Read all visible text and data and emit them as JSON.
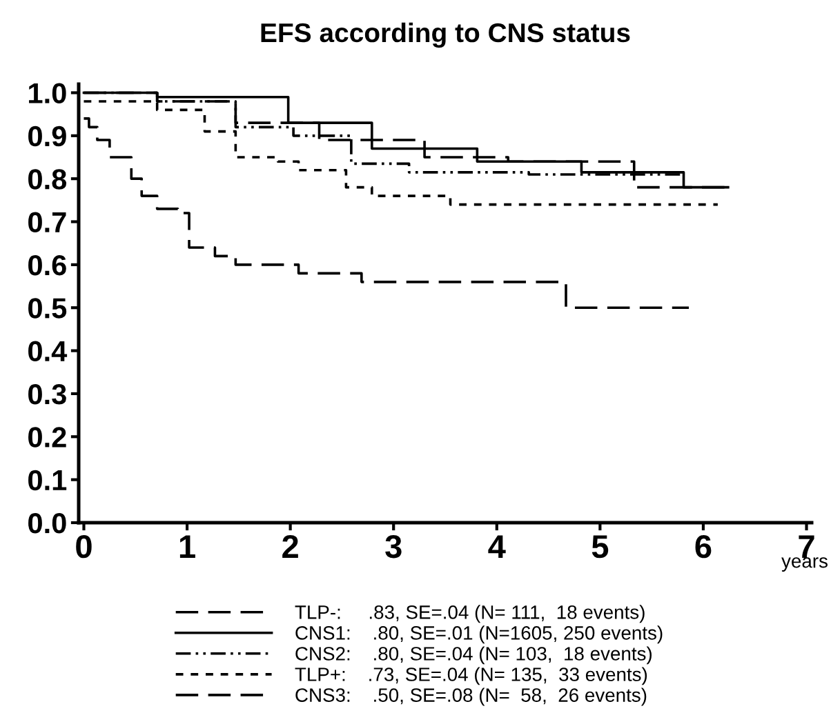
{
  "chart_data": {
    "type": "step",
    "title": "EFS according to CNS status",
    "xlabel": "years",
    "xlim": [
      -0.05,
      7.05
    ],
    "ylim": [
      0,
      1.02
    ],
    "xticks": [
      0,
      1,
      2,
      3,
      4,
      5,
      6,
      7
    ],
    "yticks": [
      {
        "value": 0,
        "label": "0.0"
      },
      0.1,
      0.2,
      0.3,
      0.4,
      0.5,
      0.6,
      0.7,
      0.8,
      0.9,
      {
        "value": 1,
        "label": "1.0"
      }
    ],
    "grid": false,
    "legend": "bottom",
    "marker": "none",
    "series": [
      {
        "name": "TLP-:     .83, SE=.04 (N= 111,  18 events)",
        "color": "#000000",
        "line_style": "longdash",
        "x": [
          0,
          0.71,
          1.47,
          2.28,
          3.3,
          4.11,
          5.33,
          6.24
        ],
        "values": [
          1.0,
          0.98,
          0.93,
          0.89,
          0.85,
          0.84,
          0.78,
          0.78
        ]
      },
      {
        "name": "CNS1:    .80, SE=.01 (N=1605, 250 events)",
        "color": "#000000",
        "line_style": "solid",
        "x": [
          0,
          0.71,
          1.98,
          2.79,
          3.81,
          4.82,
          5.81,
          6.24
        ],
        "values": [
          1.0,
          0.99,
          0.93,
          0.87,
          0.84,
          0.815,
          0.78,
          0.78
        ]
      },
      {
        "name": "CNS2:    .80, SE=.04 (N= 103,  18 events)",
        "color": "#000000",
        "line_style": "dashdot",
        "x": [
          0,
          0.71,
          1.47,
          2.03,
          2.59,
          3.15,
          4.31,
          5.8
        ],
        "values": [
          1.0,
          0.98,
          0.92,
          0.9,
          0.835,
          0.815,
          0.81,
          0.81
        ]
      },
      {
        "name": "TLP+:    .73, SE=.04 (N= 135,  33 events)",
        "color": "#000000",
        "line_style": "dashed",
        "x": [
          0,
          0.71,
          1.17,
          1.47,
          1.88,
          2.08,
          2.54,
          2.79,
          3.55,
          6.14
        ],
        "values": [
          0.98,
          0.96,
          0.91,
          0.85,
          0.84,
          0.82,
          0.78,
          0.76,
          0.74,
          0.74
        ]
      },
      {
        "name": "CNS3:    .50, SE=.08 (N=  58,  26 events)",
        "color": "#000000",
        "line_style": "longdash",
        "x": [
          0,
          0.05,
          0.13,
          0.25,
          0.46,
          0.56,
          0.71,
          0.91,
          1.02,
          1.27,
          1.47,
          2.08,
          2.69,
          4.67,
          5.86
        ],
        "values": [
          0.94,
          0.92,
          0.89,
          0.85,
          0.8,
          0.76,
          0.73,
          0.72,
          0.64,
          0.62,
          0.6,
          0.58,
          0.56,
          0.5,
          0.5
        ]
      }
    ]
  }
}
